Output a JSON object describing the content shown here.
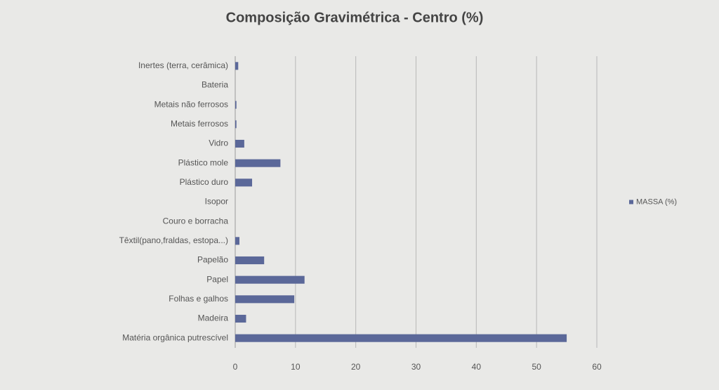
{
  "chart_data": {
    "type": "bar",
    "orientation": "horizontal",
    "title": "Composição Gravimétrica - Centro (%)",
    "categories": [
      "Inertes (terra, cerâmica)",
      "Bateria",
      "Metais não ferrosos",
      "Metais ferrosos",
      "Vidro",
      "Plástico mole",
      "Plástico duro",
      "Isopor",
      "Couro e borracha",
      "Têxtil(pano,fraldas, estopa...)",
      "Papelão",
      "Papel",
      "Folhas e galhos",
      "Madeira",
      "Matéria orgânica putrescível"
    ],
    "series": [
      {
        "name": "MASSA (%)",
        "color": "#5b6899",
        "values": [
          0.5,
          0,
          0.2,
          0.2,
          1.5,
          7.5,
          2.8,
          0,
          0,
          0.7,
          4.8,
          11.5,
          9.8,
          1.8,
          55
        ]
      }
    ],
    "xlim": [
      0,
      60
    ],
    "xticks": [
      0,
      10,
      20,
      30,
      40,
      50,
      60
    ],
    "grid": true,
    "legend": "right"
  }
}
